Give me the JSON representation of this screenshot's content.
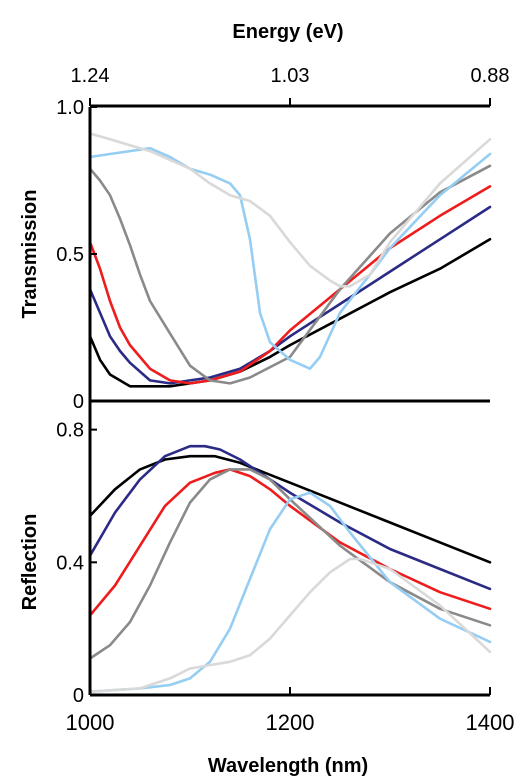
{
  "figure": {
    "top_axis_title": "Energy (eV)",
    "bottom_axis_title": "Wavelength (nm)",
    "energy_ticks": [
      {
        "wavelength": 1000,
        "label": "1.24"
      },
      {
        "wavelength": 1200,
        "label": "1.03"
      },
      {
        "wavelength": 1400,
        "label": "0.88"
      }
    ],
    "wavelength_ticks": [
      {
        "value": 1000,
        "label": "1000"
      },
      {
        "value": 1200,
        "label": "1200"
      },
      {
        "value": 1400,
        "label": "1400"
      }
    ]
  },
  "chart_data": [
    {
      "type": "line",
      "title": "",
      "xlabel": "",
      "ylabel": "Transmission",
      "xlim": [
        1000,
        1400
      ],
      "ylim": [
        0,
        1.0
      ],
      "yticks": [
        {
          "value": 0,
          "label": "0"
        },
        {
          "value": 0.5,
          "label": "0.5"
        },
        {
          "value": 1.0,
          "label": "1.0"
        }
      ],
      "series": [
        {
          "color": "#000000",
          "x": [
            1000,
            1010,
            1020,
            1030,
            1040,
            1060,
            1080,
            1100,
            1120,
            1150,
            1180,
            1200,
            1250,
            1300,
            1350,
            1400
          ],
          "y": [
            0.22,
            0.14,
            0.09,
            0.07,
            0.05,
            0.05,
            0.05,
            0.06,
            0.07,
            0.1,
            0.15,
            0.19,
            0.28,
            0.37,
            0.45,
            0.55
          ]
        },
        {
          "color": "#2b2b86",
          "x": [
            1000,
            1010,
            1020,
            1030,
            1040,
            1060,
            1080,
            1100,
            1120,
            1150,
            1180,
            1200,
            1250,
            1300,
            1350,
            1400
          ],
          "y": [
            0.38,
            0.3,
            0.22,
            0.17,
            0.13,
            0.07,
            0.06,
            0.07,
            0.08,
            0.11,
            0.17,
            0.22,
            0.33,
            0.44,
            0.55,
            0.66
          ]
        },
        {
          "color": "#ee1c1c",
          "x": [
            1000,
            1010,
            1020,
            1030,
            1040,
            1060,
            1080,
            1100,
            1120,
            1150,
            1180,
            1200,
            1250,
            1300,
            1350,
            1400
          ],
          "y": [
            0.54,
            0.45,
            0.34,
            0.25,
            0.19,
            0.11,
            0.07,
            0.06,
            0.07,
            0.1,
            0.17,
            0.24,
            0.38,
            0.52,
            0.63,
            0.73
          ]
        },
        {
          "color": "#8a8a8a",
          "x": [
            1000,
            1010,
            1020,
            1030,
            1040,
            1050,
            1060,
            1080,
            1100,
            1120,
            1140,
            1160,
            1200,
            1250,
            1300,
            1350,
            1400
          ],
          "y": [
            0.79,
            0.75,
            0.7,
            0.62,
            0.53,
            0.43,
            0.34,
            0.23,
            0.12,
            0.07,
            0.06,
            0.08,
            0.15,
            0.38,
            0.57,
            0.71,
            0.8
          ]
        },
        {
          "color": "#96cdf3",
          "x": [
            1000,
            1020,
            1040,
            1060,
            1080,
            1100,
            1120,
            1140,
            1150,
            1160,
            1170,
            1180,
            1200,
            1220,
            1230,
            1250,
            1280,
            1300,
            1350,
            1400
          ],
          "y": [
            0.83,
            0.84,
            0.85,
            0.86,
            0.83,
            0.79,
            0.77,
            0.74,
            0.7,
            0.55,
            0.3,
            0.2,
            0.14,
            0.11,
            0.15,
            0.3,
            0.43,
            0.52,
            0.7,
            0.84
          ]
        },
        {
          "color": "#d9d9d9",
          "x": [
            1000,
            1020,
            1040,
            1060,
            1080,
            1100,
            1120,
            1140,
            1160,
            1180,
            1200,
            1220,
            1240,
            1250,
            1260,
            1280,
            1300,
            1350,
            1400
          ],
          "y": [
            0.91,
            0.89,
            0.87,
            0.85,
            0.82,
            0.79,
            0.74,
            0.7,
            0.68,
            0.63,
            0.54,
            0.46,
            0.41,
            0.39,
            0.39,
            0.43,
            0.54,
            0.74,
            0.89
          ]
        }
      ]
    },
    {
      "type": "line",
      "title": "",
      "xlabel": "Wavelength (nm)",
      "ylabel": "Reflection",
      "xlim": [
        1000,
        1400
      ],
      "ylim": [
        0,
        0.82
      ],
      "yticks": [
        {
          "value": 0,
          "label": "0"
        },
        {
          "value": 0.4,
          "label": "0.4"
        },
        {
          "value": 0.8,
          "label": "0.8"
        }
      ],
      "series": [
        {
          "color": "#000000",
          "x": [
            1000,
            1025,
            1050,
            1075,
            1100,
            1125,
            1150,
            1175,
            1200,
            1250,
            1300,
            1350,
            1400
          ],
          "y": [
            0.54,
            0.62,
            0.68,
            0.71,
            0.72,
            0.72,
            0.7,
            0.67,
            0.64,
            0.58,
            0.52,
            0.46,
            0.4
          ]
        },
        {
          "color": "#2b2b86",
          "x": [
            1000,
            1025,
            1050,
            1075,
            1100,
            1115,
            1130,
            1150,
            1175,
            1200,
            1250,
            1300,
            1350,
            1400
          ],
          "y": [
            0.42,
            0.55,
            0.65,
            0.72,
            0.75,
            0.75,
            0.74,
            0.71,
            0.66,
            0.61,
            0.52,
            0.44,
            0.38,
            0.32
          ]
        },
        {
          "color": "#ee1c1c",
          "x": [
            1000,
            1025,
            1050,
            1075,
            1100,
            1125,
            1140,
            1160,
            1180,
            1200,
            1250,
            1300,
            1350,
            1400
          ],
          "y": [
            0.24,
            0.33,
            0.45,
            0.57,
            0.64,
            0.67,
            0.68,
            0.66,
            0.62,
            0.57,
            0.46,
            0.38,
            0.31,
            0.26
          ]
        },
        {
          "color": "#8a8a8a",
          "x": [
            1000,
            1020,
            1040,
            1060,
            1080,
            1100,
            1120,
            1140,
            1160,
            1180,
            1200,
            1250,
            1300,
            1350,
            1400
          ],
          "y": [
            0.11,
            0.15,
            0.22,
            0.33,
            0.46,
            0.58,
            0.65,
            0.68,
            0.68,
            0.65,
            0.59,
            0.45,
            0.34,
            0.26,
            0.21
          ]
        },
        {
          "color": "#96cdf3",
          "x": [
            1000,
            1050,
            1080,
            1100,
            1120,
            1140,
            1160,
            1180,
            1200,
            1220,
            1240,
            1260,
            1300,
            1350,
            1400
          ],
          "y": [
            0.01,
            0.02,
            0.03,
            0.05,
            0.1,
            0.2,
            0.35,
            0.5,
            0.59,
            0.61,
            0.57,
            0.49,
            0.34,
            0.23,
            0.16
          ]
        },
        {
          "color": "#d9d9d9",
          "x": [
            1000,
            1050,
            1080,
            1100,
            1120,
            1140,
            1160,
            1180,
            1200,
            1220,
            1240,
            1260,
            1270,
            1300,
            1350,
            1400
          ],
          "y": [
            0.01,
            0.02,
            0.05,
            0.08,
            0.09,
            0.1,
            0.12,
            0.17,
            0.24,
            0.31,
            0.37,
            0.41,
            0.41,
            0.38,
            0.27,
            0.13
          ]
        }
      ]
    }
  ]
}
